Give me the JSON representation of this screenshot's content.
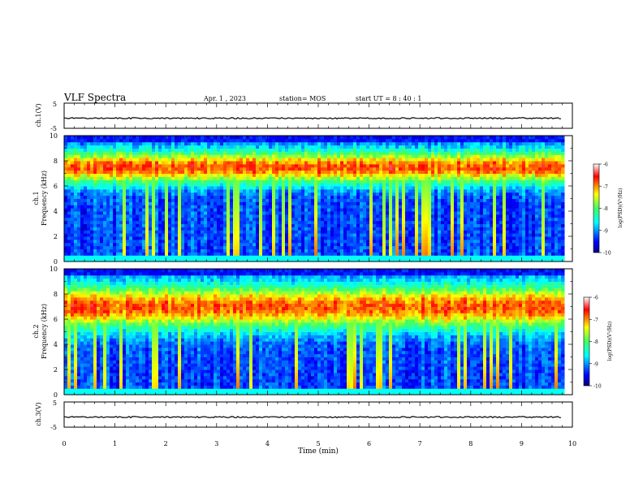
{
  "header": {
    "title": "VLF Spectra",
    "date": "Apr. 1 , 2023",
    "station": "station= MOS",
    "start": "start  UT =   8 : 40 : 1"
  },
  "chart_data": [
    {
      "id": "ch1-waveform",
      "type": "line",
      "ylabel": "ch.1(V)",
      "ylim": [
        -5,
        5
      ],
      "y_ticks": [
        "5",
        "-5"
      ],
      "xlim": [
        0,
        10
      ],
      "series": [
        {
          "values_description_only": false,
          "x": [
            0,
            9.8
          ],
          "values": [
            -1.0,
            -1.0
          ]
        }
      ]
    },
    {
      "id": "ch1-spectrogram",
      "type": "heatmap",
      "ylabel": "ch.1\nFrequency (kHz)",
      "ylabel_lines": [
        "ch.1",
        "Frequency (kHz)"
      ],
      "ylim": [
        0,
        10
      ],
      "y_ticks": [
        "0",
        "2",
        "4",
        "6",
        "8",
        "10"
      ],
      "xlim": [
        0,
        10
      ],
      "data_xlim": [
        0,
        9.8
      ],
      "intense_band_khz": [
        6,
        9
      ],
      "colorbar": {
        "label": "log(PSD)(V²/Hz)",
        "range": [
          -10,
          -6
        ],
        "ticks": [
          "-6",
          "-7",
          "-8",
          "-9",
          "-10"
        ]
      }
    },
    {
      "id": "ch2-spectrogram",
      "type": "heatmap",
      "ylabel": "ch.2\nFrequency (kHz)",
      "ylabel_lines": [
        "ch.2",
        "Frequency (kHz)"
      ],
      "ylim": [
        0,
        10
      ],
      "y_ticks": [
        "0",
        "2",
        "4",
        "6",
        "8",
        "10"
      ],
      "xlim": [
        0,
        10
      ],
      "data_xlim": [
        0,
        9.8
      ],
      "intense_band_khz": [
        5,
        9
      ],
      "colorbar": {
        "label": "log(PSD)(V²/Hz)",
        "range": [
          -10,
          -6
        ],
        "ticks": [
          "-6",
          "-7",
          "-8",
          "-9",
          "-10"
        ]
      }
    },
    {
      "id": "ch3-waveform",
      "type": "line",
      "ylabel": "ch.3(V)",
      "ylim": [
        -5,
        5
      ],
      "y_ticks": [
        "5",
        "-5"
      ],
      "xlim": [
        0,
        10
      ],
      "x_ticks": [
        "0",
        "1",
        "2",
        "3",
        "4",
        "5",
        "6",
        "7",
        "8",
        "9",
        "10"
      ],
      "xlabel": "Time  (min)",
      "series": [
        {
          "x": [
            0,
            9.8
          ],
          "values": [
            -1.0,
            -1.0
          ]
        }
      ]
    }
  ],
  "colors": {
    "jet_low": "#00007f",
    "jet_mid": "#00ff80",
    "jet_high": "#ff0000",
    "peak": "#ffffff"
  }
}
